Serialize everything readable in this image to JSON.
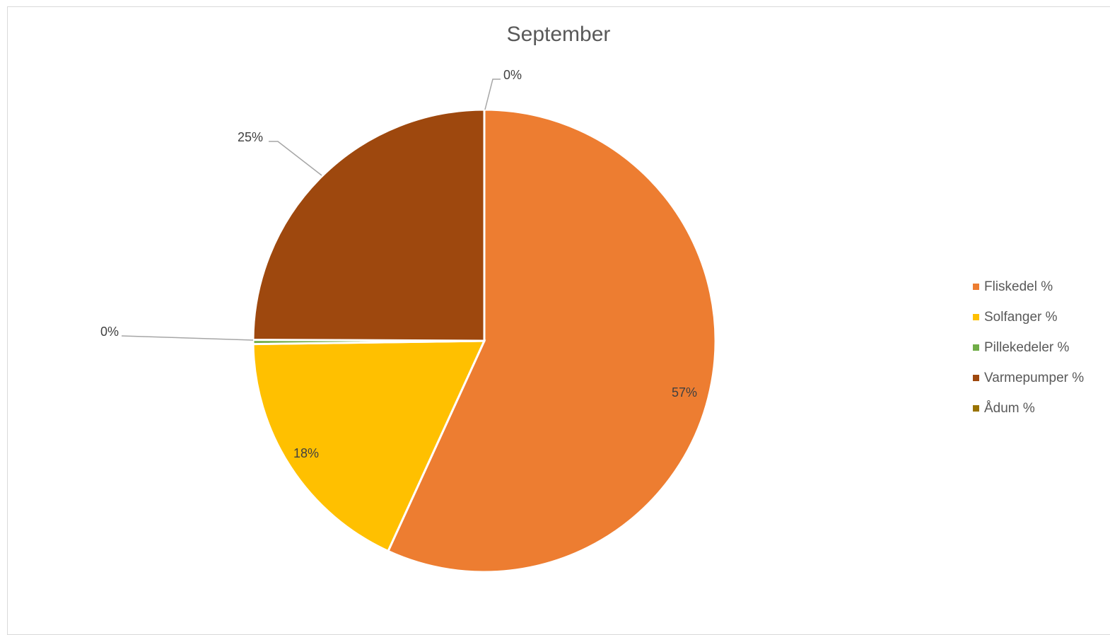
{
  "chart_data": {
    "type": "pie",
    "title": "September",
    "categories": [
      "Fliskedel %",
      "Solfanger %",
      "Pillekedeler %",
      "Varmepumper %",
      "Ådum %"
    ],
    "values": [
      57,
      18,
      0.3,
      25,
      0
    ],
    "data_labels": [
      "57%",
      "18%",
      "0%",
      "25%",
      "0%"
    ],
    "colors": [
      "#ED7D31",
      "#FFC000",
      "#70AD47",
      "#9E480E",
      "#997300"
    ],
    "legend_position": "right"
  }
}
